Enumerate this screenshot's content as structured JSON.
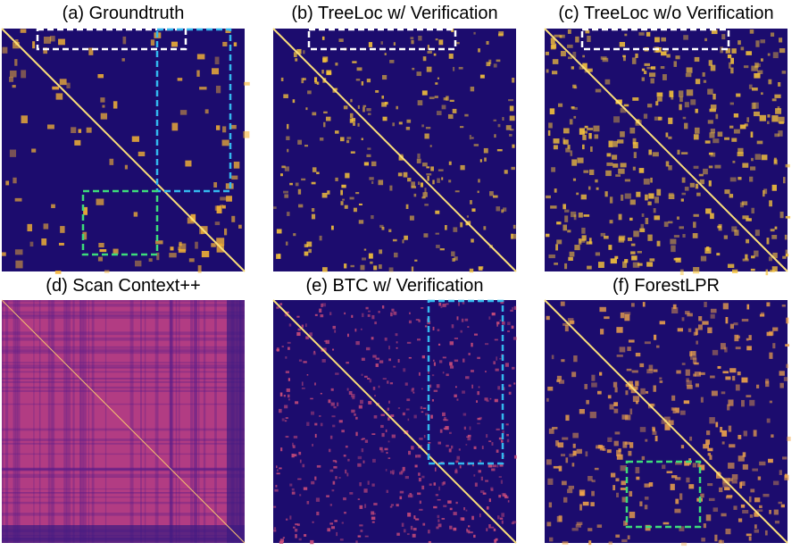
{
  "panels": [
    {
      "title": "(a) Groundtruth"
    },
    {
      "title": "(b) TreeLoc w/ Verification"
    },
    {
      "title": "(c) TreeLoc w/o Verification"
    },
    {
      "title": "(d) Scan Context++"
    },
    {
      "title": "(e) BTC w/ Verification"
    },
    {
      "title": "(f) ForestLPR"
    }
  ]
}
